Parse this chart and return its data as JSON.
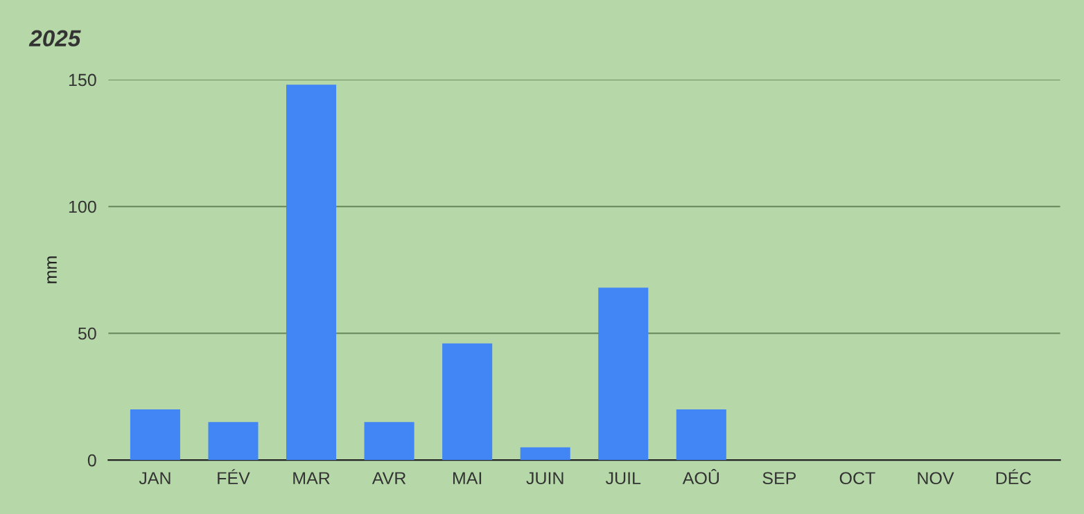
{
  "chart_data": {
    "type": "bar",
    "title": "2025",
    "ylabel": "mm",
    "categories": [
      "JAN",
      "FÉV",
      "MAR",
      "AVR",
      "MAI",
      "JUIN",
      "JUIL",
      "AOÛ",
      "SEP",
      "OCT",
      "NOV",
      "DÉC"
    ],
    "values": [
      20,
      15,
      148,
      15,
      46,
      5,
      68,
      20,
      0,
      0,
      0,
      0
    ],
    "color": "#4285f4",
    "ylim": [
      0,
      150
    ],
    "yticks": [
      0,
      50,
      100,
      150
    ],
    "grid": "y",
    "legend": false
  }
}
